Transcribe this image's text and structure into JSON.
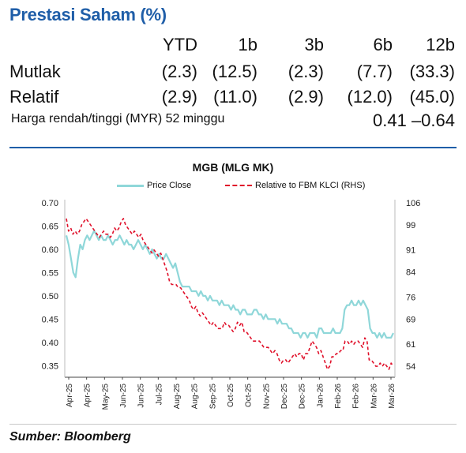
{
  "title": "Prestasi Saham (%)",
  "performance": {
    "periods": [
      "YTD",
      "1b",
      "3b",
      "6b",
      "12b"
    ],
    "rows": [
      {
        "label": "Mutlak",
        "values": [
          "(2.3)",
          "(12.5)",
          "(2.3)",
          "(7.7)",
          "(33.3)"
        ]
      },
      {
        "label": "Relatif",
        "values": [
          "(2.9)",
          "(11.0)",
          "(2.9)",
          "(12.0)",
          "(45.0)"
        ]
      }
    ]
  },
  "price_range": {
    "label": "Harga rendah/tinggi (MYR) 52 minggu",
    "value": "0.41 –0.64"
  },
  "source": "Sumber: Bloomberg",
  "colors": {
    "title": "#1f5ea8",
    "price_close": "#8fd7d9",
    "relative": "#e0102a"
  },
  "chart_data": {
    "type": "line",
    "title": "MGB  (MLG MK)",
    "x_tick_labels": [
      "Apr-25",
      "Apr-25",
      "May-25",
      "Jun-25",
      "Jun-25",
      "Jul-25",
      "Aug-25",
      "Aug-25",
      "Sep-25",
      "Oct-25",
      "Oct-25",
      "Nov-25",
      "Dec-25",
      "Dec-25",
      "Jan-26",
      "Feb-26",
      "Feb-26",
      "Mar-26",
      "Mar-26"
    ],
    "y_left": {
      "ticks": [
        "0.70",
        "0.65",
        "0.60",
        "0.55",
        "0.50",
        "0.45",
        "0.40",
        "0.35"
      ],
      "lim": [
        0.325,
        0.7
      ]
    },
    "y_right": {
      "ticks": [
        "106",
        "99",
        "91",
        "84",
        "76",
        "69",
        "61",
        "54"
      ],
      "lim": [
        50.5,
        106
      ]
    },
    "legend_position": "top-center",
    "grid": false,
    "series": [
      {
        "name": "Price Close",
        "axis": "left",
        "style": "solid",
        "values": [
          0.63,
          0.61,
          0.58,
          0.55,
          0.54,
          0.58,
          0.61,
          0.6,
          0.62,
          0.63,
          0.62,
          0.63,
          0.64,
          0.63,
          0.62,
          0.63,
          0.62,
          0.62,
          0.63,
          0.62,
          0.61,
          0.62,
          0.62,
          0.63,
          0.62,
          0.61,
          0.62,
          0.61,
          0.61,
          0.6,
          0.61,
          0.62,
          0.61,
          0.6,
          0.61,
          0.6,
          0.59,
          0.6,
          0.59,
          0.58,
          0.59,
          0.58,
          0.58,
          0.59,
          0.58,
          0.57,
          0.56,
          0.57,
          0.55,
          0.53,
          0.52,
          0.52,
          0.52,
          0.52,
          0.51,
          0.51,
          0.51,
          0.5,
          0.51,
          0.5,
          0.5,
          0.49,
          0.5,
          0.49,
          0.49,
          0.49,
          0.48,
          0.49,
          0.48,
          0.48,
          0.48,
          0.47,
          0.48,
          0.47,
          0.47,
          0.46,
          0.47,
          0.47,
          0.46,
          0.46,
          0.46,
          0.47,
          0.47,
          0.46,
          0.46,
          0.45,
          0.46,
          0.45,
          0.45,
          0.45,
          0.45,
          0.44,
          0.45,
          0.44,
          0.44,
          0.44,
          0.43,
          0.43,
          0.42,
          0.42,
          0.42,
          0.41,
          0.42,
          0.42,
          0.41,
          0.42,
          0.42,
          0.42,
          0.41,
          0.43,
          0.43,
          0.42,
          0.42,
          0.42,
          0.42,
          0.43,
          0.42,
          0.42,
          0.42,
          0.43,
          0.47,
          0.48,
          0.48,
          0.49,
          0.48,
          0.48,
          0.49,
          0.48,
          0.49,
          0.48,
          0.47,
          0.43,
          0.42,
          0.42,
          0.41,
          0.42,
          0.41,
          0.42,
          0.41,
          0.41,
          0.41,
          0.42
        ]
      },
      {
        "name": "Relative to FBM KLCI (RHS)",
        "axis": "right",
        "style": "dashed",
        "values": [
          101,
          97,
          98,
          96,
          97,
          96,
          97,
          99,
          100,
          101,
          100,
          99,
          98,
          97,
          96,
          95,
          96,
          97,
          96,
          96,
          95,
          96,
          98,
          97,
          98,
          100,
          101,
          99,
          98,
          97,
          96,
          97,
          96,
          95,
          96,
          94,
          93,
          92,
          91,
          90,
          91,
          90,
          89,
          90,
          88,
          86,
          84,
          81,
          80,
          80,
          80,
          79,
          79,
          78,
          77,
          76,
          75,
          73,
          72,
          73,
          71,
          70,
          71,
          70,
          69,
          68,
          67,
          68,
          67,
          66,
          66,
          66,
          68,
          67,
          67,
          66,
          65,
          66,
          68,
          67,
          68,
          65,
          65,
          64,
          63,
          62,
          62,
          62,
          62,
          61,
          60,
          60,
          60,
          59,
          58,
          59,
          58,
          56,
          55,
          56,
          56,
          55,
          56,
          57,
          58,
          57,
          58,
          58,
          56,
          58,
          58,
          60,
          62,
          61,
          60,
          58,
          59,
          57,
          55,
          53,
          54,
          57,
          57,
          58,
          58,
          59,
          59,
          62,
          62,
          61,
          62,
          61,
          62,
          62,
          61,
          60,
          63,
          62,
          56,
          56,
          55,
          54,
          54,
          55,
          54,
          55,
          54,
          53,
          55,
          54
        ]
      }
    ]
  }
}
